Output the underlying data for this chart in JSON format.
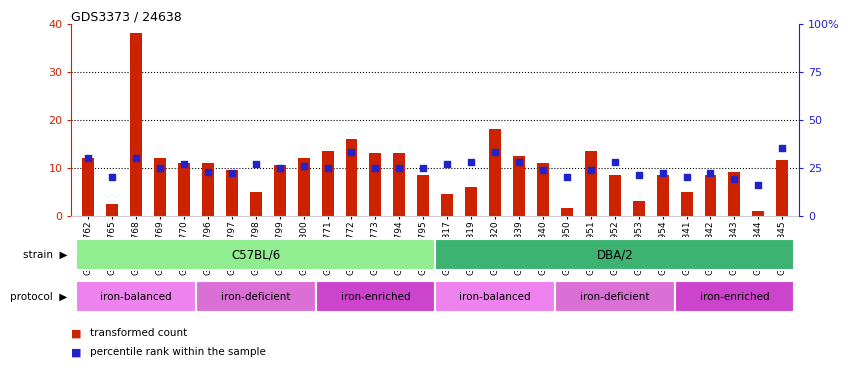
{
  "title": "GDS3373 / 24638",
  "samples": [
    "GSM262762",
    "GSM262765",
    "GSM262768",
    "GSM262769",
    "GSM262770",
    "GSM262796",
    "GSM262797",
    "GSM262798",
    "GSM262799",
    "GSM262800",
    "GSM262771",
    "GSM262772",
    "GSM262773",
    "GSM262794",
    "GSM262795",
    "GSM262817",
    "GSM262819",
    "GSM262820",
    "GSM262839",
    "GSM262840",
    "GSM262950",
    "GSM262951",
    "GSM262952",
    "GSM262953",
    "GSM262954",
    "GSM262841",
    "GSM262842",
    "GSM262843",
    "GSM262844",
    "GSM262845"
  ],
  "red_values": [
    12.0,
    2.5,
    38.0,
    12.0,
    11.0,
    11.0,
    9.5,
    5.0,
    10.5,
    12.0,
    13.5,
    16.0,
    13.0,
    13.0,
    8.5,
    4.5,
    6.0,
    18.0,
    12.5,
    11.0,
    1.5,
    13.5,
    8.5,
    3.0,
    8.5,
    5.0,
    8.5,
    9.0,
    1.0,
    11.5
  ],
  "blue_values": [
    30,
    20,
    30,
    25,
    27,
    23,
    22,
    27,
    25,
    26,
    25,
    33,
    25,
    25,
    25,
    27,
    28,
    33,
    28,
    24,
    20,
    24,
    28,
    21,
    22,
    20,
    22,
    19,
    16,
    35
  ],
  "strain_labels": [
    {
      "label": "C57BL/6",
      "start": 0,
      "end": 15,
      "color": "#90ee90"
    },
    {
      "label": "DBA/2",
      "start": 15,
      "end": 30,
      "color": "#3cb371"
    }
  ],
  "protocol_groups": [
    {
      "label": "iron-balanced",
      "start": 0,
      "end": 5,
      "color": "#ee82ee"
    },
    {
      "label": "iron-deficient",
      "start": 5,
      "end": 10,
      "color": "#da70d6"
    },
    {
      "label": "iron-enriched",
      "start": 10,
      "end": 15,
      "color": "#cc44cc"
    },
    {
      "label": "iron-balanced",
      "start": 15,
      "end": 20,
      "color": "#ee82ee"
    },
    {
      "label": "iron-deficient",
      "start": 20,
      "end": 25,
      "color": "#da70d6"
    },
    {
      "label": "iron-enriched",
      "start": 25,
      "end": 30,
      "color": "#cc44cc"
    }
  ],
  "red_color": "#cc2200",
  "blue_color": "#2222cc",
  "ylim_left": [
    0,
    40
  ],
  "ylim_right": [
    0,
    100
  ],
  "yticks_left": [
    0,
    10,
    20,
    30,
    40
  ],
  "yticks_right": [
    0,
    25,
    50,
    75,
    100
  ],
  "ytick_labels_right": [
    "0",
    "25",
    "50",
    "75",
    "100%"
  ],
  "bar_width": 0.5,
  "bg_color": "#ffffff"
}
